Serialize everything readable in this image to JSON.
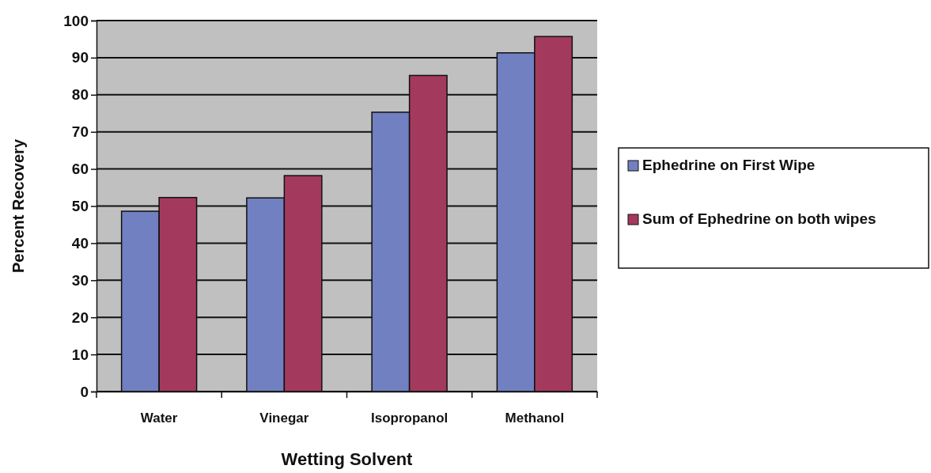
{
  "chart_data": {
    "type": "bar",
    "xlabel": "Wetting Solvent",
    "ylabel": "Percent Recovery",
    "categories": [
      "Water",
      "Vinegar",
      "Isopropanol",
      "Methanol"
    ],
    "series": [
      {
        "name": "Ephedrine on First Wipe",
        "color": "#7080c0",
        "values": [
          48.6,
          52.2,
          75.3,
          91.3
        ]
      },
      {
        "name": "Sum of Ephedrine on both wipes",
        "color": "#a33a5e",
        "values": [
          52.3,
          58.2,
          85.2,
          95.7
        ]
      }
    ],
    "ylim": [
      0,
      100
    ],
    "yticks": [
      0,
      10,
      20,
      30,
      40,
      50,
      60,
      70,
      80,
      90,
      100
    ],
    "grid": "y",
    "legend": "right"
  }
}
